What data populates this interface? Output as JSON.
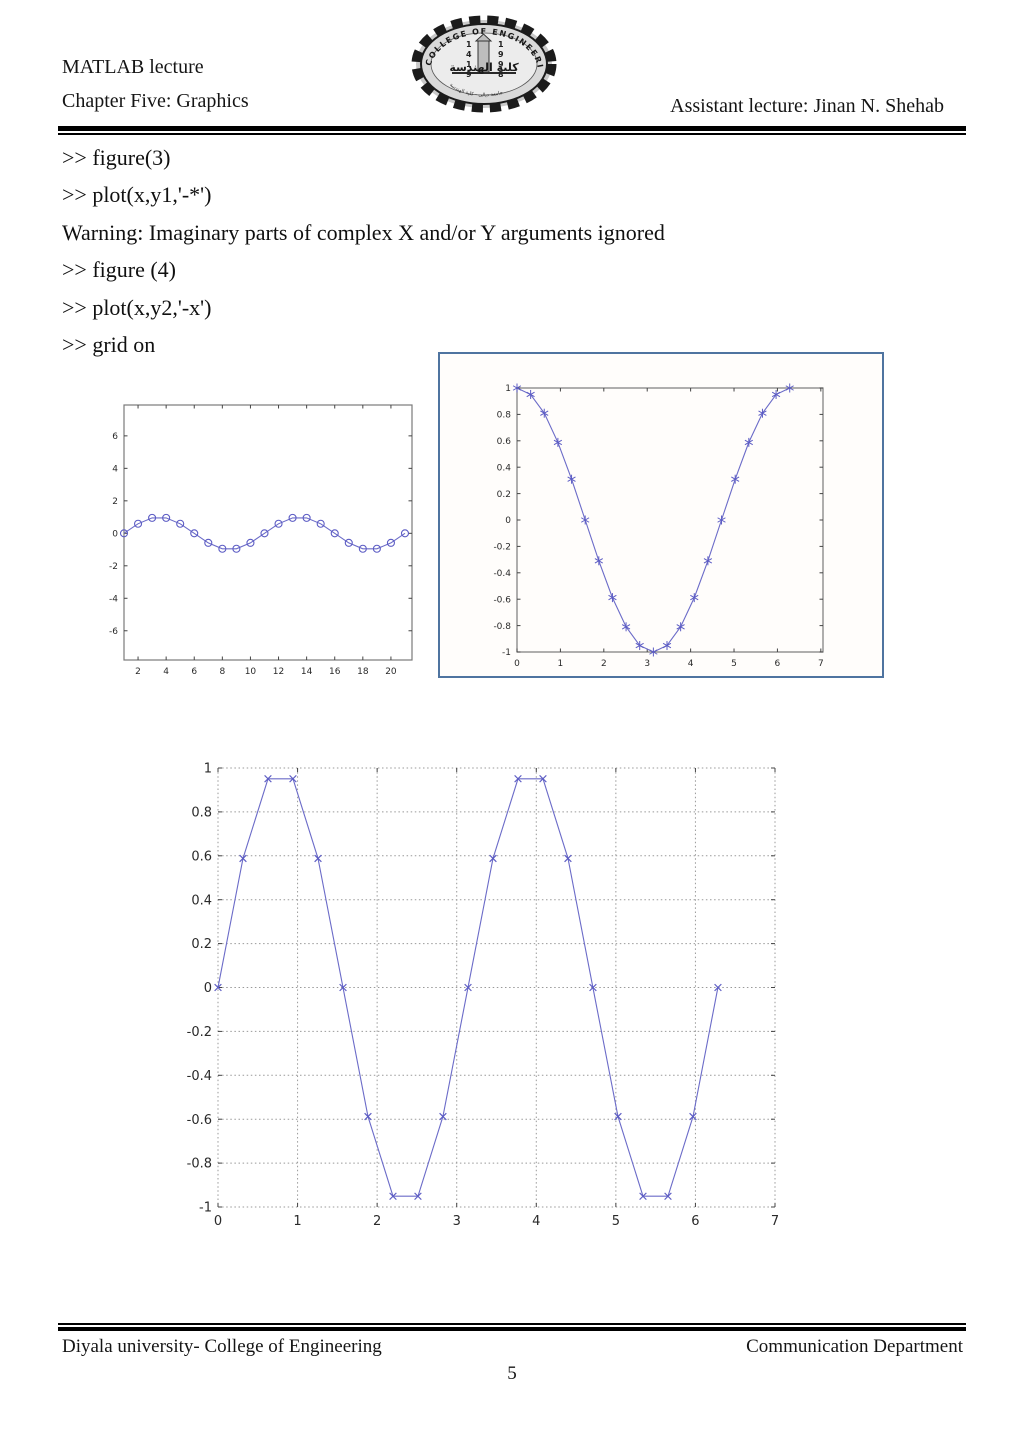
{
  "header": {
    "course": "MATLAB lecture",
    "chapter": "Chapter Five: Graphics",
    "lecturer": "Assistant lecture: Jinan N. Shehab",
    "logo": {
      "arc_text": "COLLEGE OF ENGINEERING",
      "year_left_digits": [
        "1",
        "4",
        "1",
        "9"
      ],
      "year_right_digits": [
        "1",
        "9",
        "9",
        "8"
      ],
      "center_text": "كلية الهندسة",
      "bottom_text": "جامعة ديالى - كلية الهندسة"
    }
  },
  "console": {
    "lines": [
      ">> figure(3)",
      ">> plot(x,y1,'-*')",
      "Warning: Imaginary parts of complex X and/or Y arguments ignored",
      ">> figure (4)",
      ">> plot(x,y2,'-x')",
      ">> grid on"
    ]
  },
  "footer": {
    "left": "Diyala university- College of Engineering",
    "right": "Communication Department",
    "page_number": "5"
  },
  "colors": {
    "line": "#6b6bc8",
    "marker": "#5c5cc4",
    "frame": "#7a7a7a",
    "grid": "#999999",
    "tick_text": "#2a2a2a",
    "box_border": "#4f74a0"
  },
  "chart_data": [
    {
      "type": "line",
      "name": "sine-wave-circle-markers",
      "marker": "o",
      "grid": false,
      "x": [
        1,
        2,
        3,
        4,
        5,
        6,
        7,
        8,
        9,
        10,
        11,
        12,
        13,
        14,
        15,
        16,
        17,
        18,
        19,
        20,
        21
      ],
      "y": [
        0,
        0.588,
        0.951,
        0.951,
        0.588,
        0,
        -0.588,
        -0.951,
        -0.951,
        -0.588,
        0,
        0.588,
        0.951,
        0.951,
        0.588,
        0,
        -0.588,
        -0.951,
        -0.951,
        -0.588,
        0
      ],
      "xlim": [
        1,
        21.5
      ],
      "ylim": [
        -7.8,
        7.9
      ],
      "xticks": [
        2,
        4,
        6,
        8,
        10,
        12,
        14,
        16,
        18,
        20
      ],
      "xtick_labels": [
        "2",
        "4",
        "6",
        "8",
        "10",
        "12",
        "14",
        "16",
        "18",
        "20"
      ],
      "yticks": [
        -6,
        -4,
        -2,
        0,
        2,
        4,
        6
      ],
      "ytick_labels": [
        "-6",
        "-4",
        "-2",
        "0",
        "2",
        "4",
        "6"
      ]
    },
    {
      "type": "line",
      "name": "figure3-cosine-asterisk-markers",
      "marker": "*",
      "grid": false,
      "x": [
        0,
        0.314,
        0.628,
        0.942,
        1.257,
        1.571,
        1.885,
        2.199,
        2.513,
        2.827,
        3.142,
        3.456,
        3.77,
        4.084,
        4.398,
        4.712,
        5.027,
        5.341,
        5.655,
        5.969,
        6.283
      ],
      "y": [
        1,
        0.951,
        0.809,
        0.588,
        0.309,
        0,
        -0.309,
        -0.588,
        -0.809,
        -0.951,
        -1,
        -0.951,
        -0.809,
        -0.588,
        -0.309,
        0,
        0.309,
        0.588,
        0.809,
        0.951,
        1
      ],
      "xlim": [
        0,
        7.05
      ],
      "ylim": [
        -1,
        1
      ],
      "xticks": [
        0,
        1,
        2,
        3,
        4,
        5,
        6,
        7
      ],
      "xtick_labels": [
        "0",
        "1",
        "2",
        "3",
        "4",
        "5",
        "6",
        "7"
      ],
      "yticks": [
        -1,
        -0.8,
        -0.6,
        -0.4,
        -0.2,
        0,
        0.2,
        0.4,
        0.6,
        0.8,
        1
      ],
      "ytick_labels": [
        "-1",
        "-0.8",
        "-0.6",
        "-0.4",
        "-0.2",
        "0",
        "0.2",
        "0.4",
        "0.6",
        "0.8",
        "1"
      ]
    },
    {
      "type": "line",
      "name": "figure4-sin2x-x-markers-grid-on",
      "marker": "x",
      "grid": true,
      "x": [
        0,
        0.314,
        0.628,
        0.942,
        1.257,
        1.571,
        1.885,
        2.199,
        2.513,
        2.827,
        3.142,
        3.456,
        3.77,
        4.084,
        4.398,
        4.712,
        5.027,
        5.341,
        5.655,
        5.969,
        6.283
      ],
      "y": [
        0,
        0.588,
        0.951,
        0.951,
        0.588,
        0,
        -0.588,
        -0.951,
        -0.951,
        -0.588,
        0,
        0.588,
        0.951,
        0.951,
        0.588,
        0,
        -0.588,
        -0.951,
        -0.951,
        -0.588,
        0
      ],
      "xlim": [
        0,
        7
      ],
      "ylim": [
        -1,
        1
      ],
      "xticks": [
        0,
        1,
        2,
        3,
        4,
        5,
        6,
        7
      ],
      "xtick_labels": [
        "0",
        "1",
        "2",
        "3",
        "4",
        "5",
        "6",
        "7"
      ],
      "yticks": [
        -1,
        -0.8,
        -0.6,
        -0.4,
        -0.2,
        0,
        0.2,
        0.4,
        0.6,
        0.8,
        1
      ],
      "ytick_labels": [
        "-1",
        "-0.8",
        "-0.6",
        "-0.4",
        "-0.2",
        "0",
        "0.2",
        "0.4",
        "0.6",
        "0.8",
        "1"
      ]
    }
  ]
}
